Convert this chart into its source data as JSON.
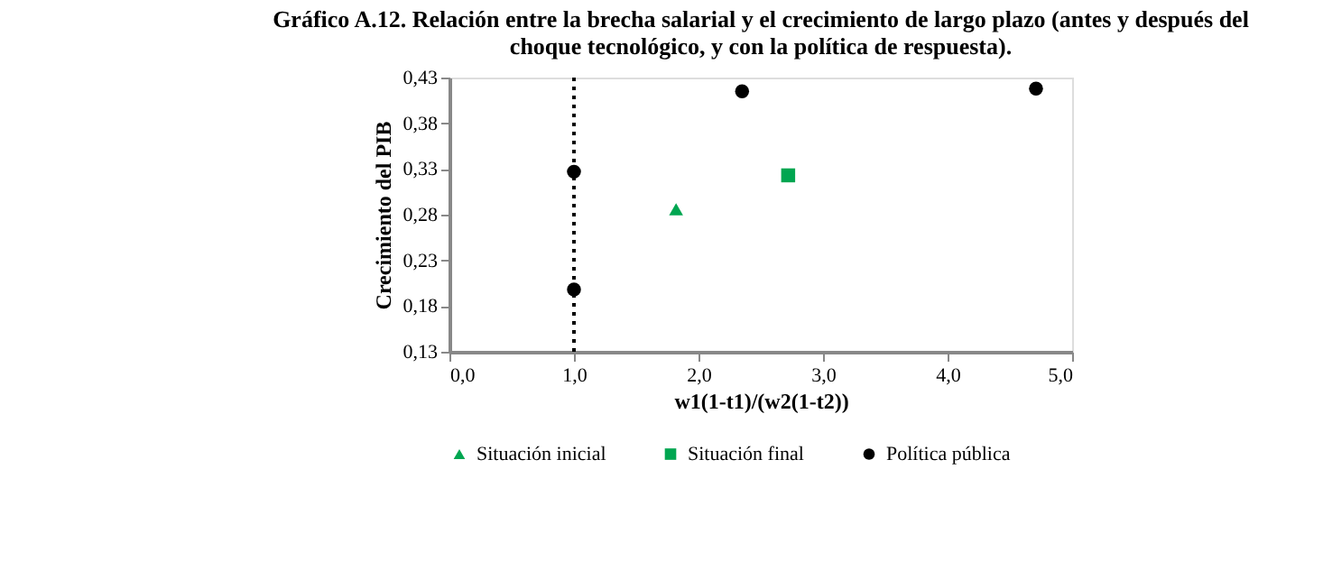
{
  "chart_data": {
    "type": "scatter",
    "title": "Gráfico A.12. Relación entre la brecha salarial y el crecimiento de largo plazo (antes y después del choque tecnológico, y con la política de respuesta).",
    "xlabel": "w1(1-t1)/(w2(1-t2))",
    "ylabel": "Crecimiento del PIB",
    "series": [
      {
        "name": "Situación inicial",
        "color": "#00a651",
        "marker": "triangle",
        "x": [
          1.82
        ],
        "values": [
          0.286
        ]
      },
      {
        "name": "Situación final",
        "color": "#00a651",
        "marker": "square",
        "x": [
          2.72
        ],
        "values": [
          0.323
        ]
      },
      {
        "name": "Política pública",
        "color": "#000000",
        "marker": "circle",
        "x": [
          1.0,
          1.0,
          2.35,
          4.71
        ],
        "values": [
          0.327,
          0.198,
          0.415,
          0.418
        ]
      }
    ],
    "xlim": [
      0,
      5
    ],
    "ylim": [
      0.13,
      0.43
    ],
    "xticks": [
      {
        "value": 0,
        "label": "0,0"
      },
      {
        "value": 1,
        "label": "1,0"
      },
      {
        "value": 2,
        "label": "2,0"
      },
      {
        "value": 3,
        "label": "3,0"
      },
      {
        "value": 4,
        "label": "4,0"
      },
      {
        "value": 5,
        "label": "5,0"
      }
    ],
    "yticks": [
      {
        "value": 0.13,
        "label": "0,13"
      },
      {
        "value": 0.18,
        "label": "0,18"
      },
      {
        "value": 0.23,
        "label": "0,23"
      },
      {
        "value": 0.28,
        "label": "0,28"
      },
      {
        "value": 0.33,
        "label": "0,33"
      },
      {
        "value": 0.38,
        "label": "0,38"
      },
      {
        "value": 0.43,
        "label": "0,43"
      }
    ],
    "ref_lines": [
      {
        "axis": "x",
        "value": 1.0,
        "color": "#000000",
        "line_style": "dotted"
      }
    ],
    "grid": false,
    "legend": "bottom"
  }
}
